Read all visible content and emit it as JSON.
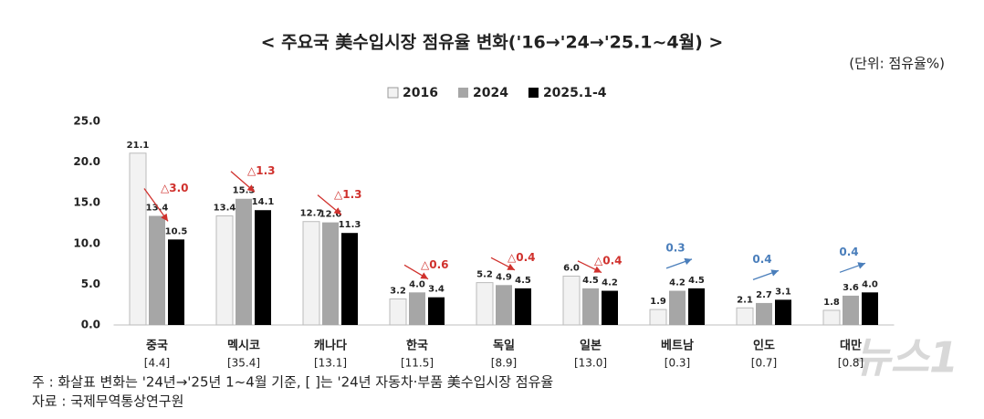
{
  "chart_data": {
    "type": "bar",
    "title": "< 주요국 美수입시장 점유율 변화('16→'24→'25.1~4월) >",
    "unit": "(단위: 점유율%)",
    "categories": [
      "중국",
      "멕시코",
      "캐나다",
      "한국",
      "독일",
      "일본",
      "베트남",
      "인도",
      "대만"
    ],
    "shares": [
      "[4.4]",
      "[35.4]",
      "[13.1]",
      "[11.5]",
      "[8.9]",
      "[13.0]",
      "[0.3]",
      "[0.7]",
      "[0.8]"
    ],
    "series": [
      {
        "name": "2016",
        "color": "#f2f2f2",
        "values": [
          21.1,
          13.4,
          12.7,
          3.2,
          5.2,
          6.0,
          1.9,
          2.1,
          1.8
        ],
        "value_labels": [
          "21.1",
          "13.4",
          "12.7",
          "3.2",
          "5.2",
          "6.0",
          "1.9",
          "2.1",
          "1.8"
        ]
      },
      {
        "name": "2024",
        "color": "#a6a6a6",
        "values": [
          13.4,
          15.5,
          12.6,
          4.0,
          4.9,
          4.5,
          4.2,
          2.7,
          3.6
        ],
        "value_labels": [
          "13.4",
          "15.5",
          "12.6",
          "4.0",
          "4.9",
          "4.5",
          "4.2",
          "2.7",
          "3.6"
        ]
      },
      {
        "name": "2025.1-4",
        "color": "#000000",
        "values": [
          10.5,
          14.1,
          11.3,
          3.4,
          4.5,
          4.2,
          4.5,
          3.1,
          4.0
        ],
        "value_labels": [
          "10.5",
          "14.1",
          "11.3",
          "3.4",
          "4.5",
          "4.2",
          "4.5",
          "3.1",
          "4.0"
        ]
      }
    ],
    "changes": [
      {
        "label": "△3.0",
        "direction": "down",
        "color": "#d0312d"
      },
      {
        "label": "△1.3",
        "direction": "down",
        "color": "#d0312d"
      },
      {
        "label": "△1.3",
        "direction": "down",
        "color": "#d0312d"
      },
      {
        "label": "△0.6",
        "direction": "down",
        "color": "#d0312d"
      },
      {
        "label": "△0.4",
        "direction": "down",
        "color": "#d0312d"
      },
      {
        "label": "△0.4",
        "direction": "down",
        "color": "#d0312d"
      },
      {
        "label": "0.3",
        "direction": "up",
        "color": "#4a7ebb"
      },
      {
        "label": "0.4",
        "direction": "up",
        "color": "#4a7ebb"
      },
      {
        "label": "0.4",
        "direction": "up",
        "color": "#4a7ebb"
      }
    ],
    "ylim": [
      0,
      25
    ],
    "yticks": [
      {
        "value": 0,
        "label": "0.0"
      },
      {
        "value": 5,
        "label": "5.0"
      },
      {
        "value": 10,
        "label": "10.0"
      },
      {
        "value": 15,
        "label": "15.0"
      },
      {
        "value": 20,
        "label": "20.0"
      },
      {
        "value": 25,
        "label": "25.0"
      }
    ],
    "notes": [
      "주 : 화살표 변화는 '24년→'25년 1~4월 기준, [ ]는 '24년 자동차·부품 美수입시장 점유율",
      "자료 : 국제무역통상연구원"
    ],
    "watermark": "뉴스1"
  }
}
